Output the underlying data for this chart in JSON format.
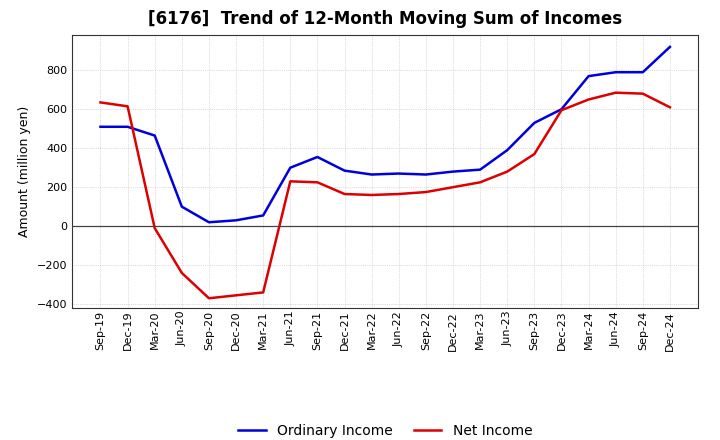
{
  "title": "[6176]  Trend of 12-Month Moving Sum of Incomes",
  "ylabel": "Amount (million yen)",
  "xlabels": [
    "Sep-19",
    "Dec-19",
    "Mar-20",
    "Jun-20",
    "Sep-20",
    "Dec-20",
    "Mar-21",
    "Jun-21",
    "Sep-21",
    "Dec-21",
    "Mar-22",
    "Jun-22",
    "Sep-22",
    "Dec-22",
    "Mar-23",
    "Jun-23",
    "Sep-23",
    "Dec-23",
    "Mar-24",
    "Jun-24",
    "Sep-24",
    "Dec-24"
  ],
  "ordinary_income": [
    510,
    510,
    465,
    100,
    20,
    30,
    55,
    300,
    355,
    285,
    265,
    270,
    265,
    280,
    290,
    390,
    530,
    600,
    770,
    790,
    790,
    920
  ],
  "net_income": [
    635,
    615,
    -10,
    -240,
    -370,
    -355,
    -340,
    230,
    225,
    165,
    160,
    165,
    175,
    200,
    225,
    280,
    370,
    595,
    650,
    685,
    680,
    610
  ],
  "ylim": [
    -420,
    980
  ],
  "yticks": [
    -400,
    -200,
    0,
    200,
    400,
    600,
    800
  ],
  "ordinary_color": "#0000dd",
  "net_color": "#dd0000",
  "background_color": "#ffffff",
  "grid_color": "#bbbbbb",
  "legend_ordinary": "Ordinary Income",
  "legend_net": "Net Income",
  "title_fontsize": 12,
  "axis_fontsize": 9,
  "tick_fontsize": 8,
  "legend_fontsize": 10
}
